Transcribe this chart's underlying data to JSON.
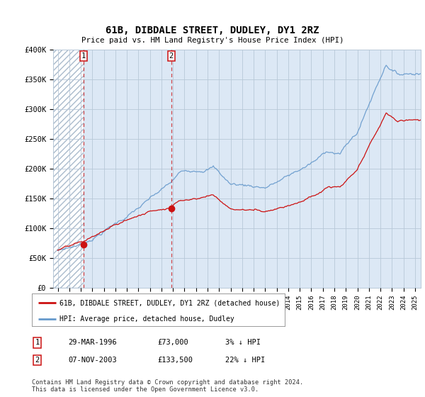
{
  "title": "61B, DIBDALE STREET, DUDLEY, DY1 2RZ",
  "subtitle": "Price paid vs. HM Land Registry's House Price Index (HPI)",
  "ylim": [
    0,
    400000
  ],
  "yticks": [
    0,
    50000,
    100000,
    150000,
    200000,
    250000,
    300000,
    350000,
    400000
  ],
  "ytick_labels": [
    "£0",
    "£50K",
    "£100K",
    "£150K",
    "£200K",
    "£250K",
    "£300K",
    "£350K",
    "£400K"
  ],
  "plot_bg": "#dce8f5",
  "hatch_bg": "#ffffff",
  "grid_color": "#b8c8d8",
  "line1_color": "#cc1111",
  "line2_color": "#6699cc",
  "sale1_date": 1996.24,
  "sale1_price": 73000,
  "sale2_date": 2003.85,
  "sale2_price": 133500,
  "legend1": "61B, DIBDALE STREET, DUDLEY, DY1 2RZ (detached house)",
  "legend2": "HPI: Average price, detached house, Dudley",
  "table_row1": [
    "1",
    "29-MAR-1996",
    "£73,000",
    "3% ↓ HPI"
  ],
  "table_row2": [
    "2",
    "07-NOV-2003",
    "£133,500",
    "22% ↓ HPI"
  ],
  "footnote": "Contains HM Land Registry data © Crown copyright and database right 2024.\nThis data is licensed under the Open Government Licence v3.0.",
  "xmin": 1993.6,
  "xmax": 2025.5,
  "xticks": [
    1994,
    1995,
    1996,
    1997,
    1998,
    1999,
    2000,
    2001,
    2002,
    2003,
    2004,
    2005,
    2006,
    2007,
    2008,
    2009,
    2010,
    2011,
    2012,
    2013,
    2014,
    2015,
    2016,
    2017,
    2018,
    2019,
    2020,
    2021,
    2022,
    2023,
    2024,
    2025
  ]
}
